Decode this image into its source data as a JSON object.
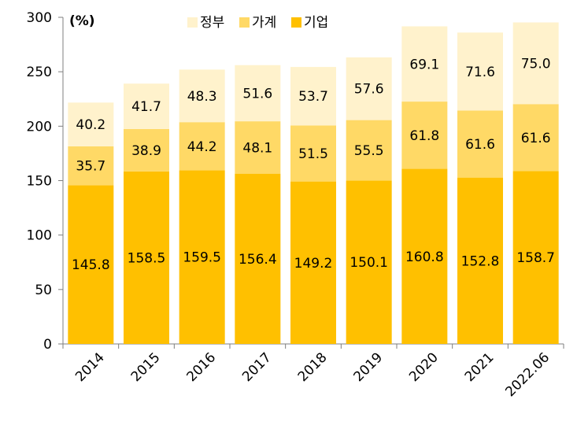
{
  "chart_data": {
    "type": "bar",
    "stacked": true,
    "unit_label": "(%)",
    "categories": [
      "2014",
      "2015",
      "2016",
      "2017",
      "2018",
      "2019",
      "2020",
      "2021",
      "2022.06"
    ],
    "series": [
      {
        "name": "기업",
        "color": "#FFC000",
        "values": [
          145.8,
          158.5,
          159.5,
          156.4,
          149.2,
          150.1,
          160.8,
          152.8,
          158.7
        ]
      },
      {
        "name": "가계",
        "color": "#FFD966",
        "values": [
          35.7,
          38.9,
          44.2,
          48.1,
          51.5,
          55.5,
          61.8,
          61.6,
          61.6
        ]
      },
      {
        "name": "정부",
        "color": "#FFF2CC",
        "values": [
          40.2,
          41.7,
          48.3,
          51.6,
          53.7,
          57.6,
          69.1,
          71.6,
          75.0
        ]
      }
    ],
    "legend_order": [
      "정부",
      "가계",
      "기업"
    ],
    "legend_position": "top-center",
    "ylim": [
      0,
      300
    ],
    "yticks": [
      0,
      50,
      100,
      150,
      200,
      250,
      300
    ],
    "grid": false
  }
}
